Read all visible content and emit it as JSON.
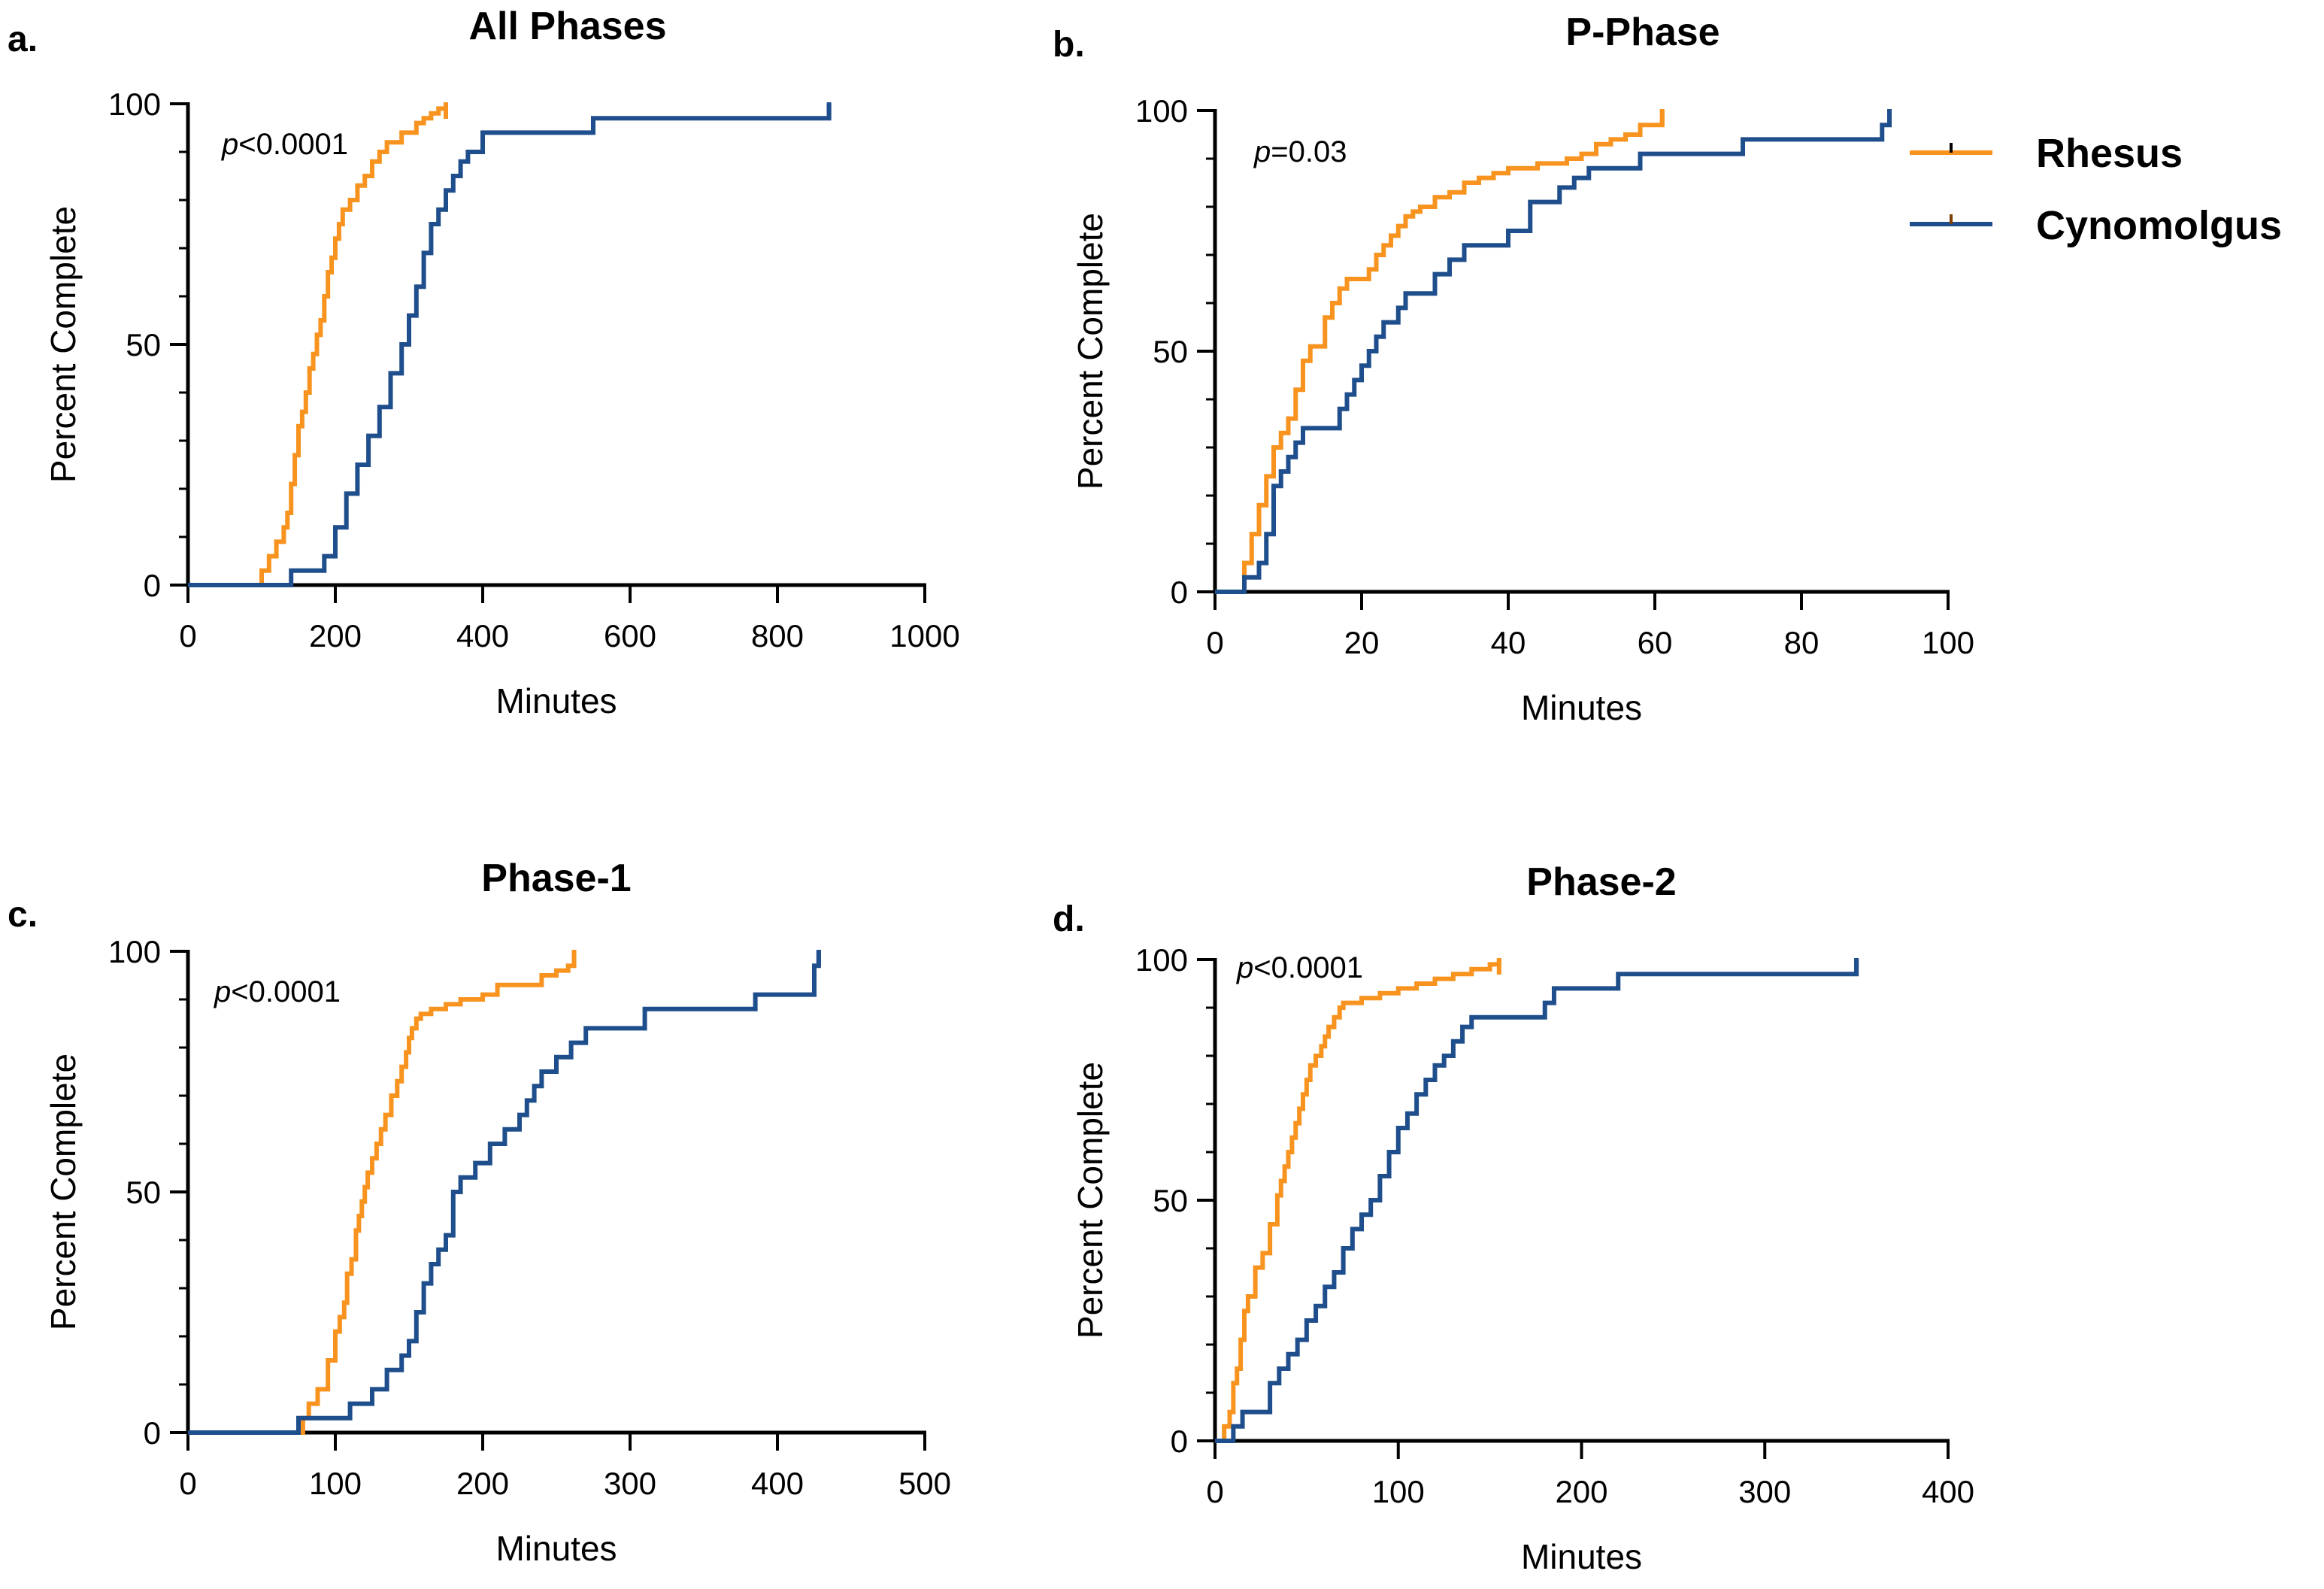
{
  "legend": {
    "items": [
      {
        "label": "Rhesus",
        "color": "#F7931E"
      },
      {
        "label": "Cynomolgus",
        "color": "#1F4E8C"
      }
    ]
  },
  "chart_data": [
    {
      "type": "line",
      "step": true,
      "panel_label": "a.",
      "title": "All Phases",
      "xlabel": "Minutes",
      "ylabel": "Percent Complete",
      "xlim": [
        0,
        1000
      ],
      "ylim": [
        0,
        100
      ],
      "xticks": [
        0,
        200,
        400,
        600,
        800,
        1000
      ],
      "yticks": [
        0,
        50,
        100
      ],
      "annotation": {
        "p_symbol": "p",
        "p_text": "<0.0001"
      },
      "series": [
        {
          "name": "Rhesus",
          "color": "#F7931E",
          "x": [
            0,
            100,
            110,
            120,
            130,
            135,
            140,
            145,
            150,
            155,
            160,
            165,
            170,
            175,
            180,
            185,
            190,
            195,
            200,
            205,
            210,
            220,
            230,
            240,
            250,
            260,
            270,
            290,
            310,
            320,
            330,
            340,
            350
          ],
          "y": [
            0,
            3,
            6,
            9,
            12,
            15,
            21,
            27,
            33,
            36,
            40,
            45,
            48,
            52,
            55,
            60,
            65,
            68,
            72,
            75,
            78,
            80,
            83,
            85,
            88,
            90,
            92,
            94,
            96,
            97,
            98,
            99,
            100
          ]
        },
        {
          "name": "Cynomolgus",
          "color": "#1F4E8C",
          "x": [
            0,
            140,
            185,
            200,
            215,
            230,
            245,
            260,
            275,
            290,
            300,
            310,
            320,
            330,
            340,
            350,
            360,
            370,
            380,
            400,
            450,
            550,
            870,
            870
          ],
          "y": [
            0,
            3,
            6,
            12,
            19,
            25,
            31,
            37,
            44,
            50,
            56,
            62,
            69,
            75,
            78,
            82,
            85,
            88,
            90,
            94,
            94,
            97,
            97,
            100
          ]
        }
      ]
    },
    {
      "type": "line",
      "step": true,
      "panel_label": "b.",
      "title": "P-Phase",
      "xlabel": "Minutes",
      "ylabel": "Percent Complete",
      "xlim": [
        0,
        100
      ],
      "ylim": [
        0,
        100
      ],
      "xticks": [
        0,
        20,
        40,
        60,
        80,
        100
      ],
      "yticks": [
        0,
        50,
        100
      ],
      "annotation": {
        "p_symbol": "p",
        "p_text": "=0.03"
      },
      "series": [
        {
          "name": "Rhesus",
          "color": "#F7931E",
          "x": [
            0,
            4,
            5,
            6,
            7,
            8,
            9,
            10,
            11,
            12,
            13,
            15,
            16,
            17,
            18,
            20,
            21,
            22,
            23,
            24,
            25,
            26,
            27,
            28,
            30,
            32,
            34,
            36,
            38,
            40,
            44,
            48,
            50,
            52,
            54,
            56,
            58,
            61
          ],
          "y": [
            0,
            6,
            12,
            18,
            24,
            30,
            33,
            36,
            42,
            48,
            51,
            57,
            60,
            63,
            65,
            65,
            67,
            70,
            72,
            74,
            76,
            78,
            79,
            80,
            82,
            83,
            85,
            86,
            87,
            88,
            89,
            90,
            91,
            93,
            94,
            95,
            97,
            100
          ]
        },
        {
          "name": "Cynomolgus",
          "color": "#1F4E8C",
          "x": [
            0,
            4,
            6,
            7,
            8,
            9,
            10,
            11,
            12,
            14,
            17,
            18,
            19,
            20,
            21,
            22,
            23,
            25,
            26,
            30,
            32,
            34,
            36,
            40,
            43,
            47,
            49,
            51,
            56,
            58,
            64,
            72,
            91,
            92
          ],
          "y": [
            0,
            3,
            6,
            12,
            22,
            25,
            28,
            31,
            34,
            34,
            38,
            41,
            44,
            47,
            50,
            53,
            56,
            59,
            62,
            66,
            69,
            72,
            72,
            75,
            81,
            84,
            86,
            88,
            88,
            91,
            91,
            94,
            97,
            100
          ]
        }
      ]
    },
    {
      "type": "line",
      "step": true,
      "panel_label": "c.",
      "title": "Phase-1",
      "xlabel": "Minutes",
      "ylabel": "Percent Complete",
      "xlim": [
        0,
        500
      ],
      "ylim": [
        0,
        100
      ],
      "xticks": [
        0,
        100,
        200,
        300,
        400,
        500
      ],
      "yticks": [
        0,
        50,
        100
      ],
      "annotation": {
        "p_symbol": "p",
        "p_text": "<0.0001"
      },
      "series": [
        {
          "name": "Rhesus",
          "color": "#F7931E",
          "x": [
            0,
            78,
            82,
            88,
            95,
            100,
            103,
            106,
            108,
            111,
            114,
            116,
            118,
            120,
            122,
            125,
            128,
            131,
            134,
            138,
            142,
            145,
            148,
            150,
            152,
            155,
            158,
            160,
            165,
            175,
            185,
            200,
            210,
            240,
            250,
            258,
            262
          ],
          "y": [
            0,
            3,
            6,
            9,
            15,
            21,
            24,
            27,
            33,
            36,
            42,
            45,
            48,
            51,
            54,
            57,
            60,
            63,
            66,
            70,
            73,
            76,
            79,
            82,
            84,
            86,
            87,
            87,
            88,
            89,
            90,
            91,
            93,
            95,
            96,
            97,
            100
          ]
        },
        {
          "name": "Cynomolgus",
          "color": "#1F4E8C",
          "x": [
            0,
            75,
            85,
            110,
            125,
            135,
            145,
            150,
            155,
            160,
            165,
            170,
            175,
            180,
            185,
            195,
            205,
            215,
            225,
            230,
            235,
            240,
            250,
            260,
            270,
            310,
            385,
            425,
            428
          ],
          "y": [
            0,
            3,
            3,
            6,
            9,
            13,
            16,
            19,
            25,
            31,
            35,
            38,
            41,
            50,
            53,
            56,
            60,
            63,
            66,
            69,
            72,
            75,
            78,
            81,
            84,
            88,
            91,
            97,
            100
          ]
        }
      ]
    },
    {
      "type": "line",
      "step": true,
      "panel_label": "d.",
      "title": "Phase-2",
      "xlabel": "Minutes",
      "ylabel": "Percent Complete",
      "xlim": [
        0,
        400
      ],
      "ylim": [
        0,
        100
      ],
      "xticks": [
        0,
        100,
        200,
        300,
        400
      ],
      "yticks": [
        0,
        50,
        100
      ],
      "annotation": {
        "p_symbol": "p",
        "p_text": "<0.0001"
      },
      "series": [
        {
          "name": "Rhesus",
          "color": "#F7931E",
          "x": [
            0,
            5,
            8,
            10,
            12,
            14,
            16,
            18,
            22,
            26,
            30,
            34,
            36,
            38,
            40,
            42,
            44,
            46,
            48,
            50,
            52,
            55,
            58,
            60,
            62,
            65,
            68,
            70,
            80,
            90,
            100,
            110,
            120,
            130,
            140,
            150,
            155
          ],
          "y": [
            0,
            3,
            6,
            12,
            15,
            21,
            27,
            30,
            36,
            39,
            45,
            51,
            54,
            57,
            60,
            63,
            66,
            69,
            72,
            75,
            78,
            80,
            82,
            84,
            86,
            88,
            90,
            91,
            92,
            93,
            94,
            95,
            96,
            97,
            98,
            99,
            100
          ]
        },
        {
          "name": "Cynomolgus",
          "color": "#1F4E8C",
          "x": [
            0,
            10,
            15,
            30,
            35,
            40,
            45,
            50,
            55,
            60,
            65,
            70,
            75,
            80,
            85,
            90,
            95,
            100,
            105,
            110,
            115,
            120,
            125,
            130,
            135,
            140,
            180,
            185,
            220,
            350
          ],
          "y": [
            0,
            3,
            6,
            12,
            15,
            18,
            21,
            25,
            28,
            32,
            35,
            40,
            44,
            47,
            50,
            55,
            60,
            65,
            68,
            72,
            75,
            78,
            80,
            83,
            86,
            88,
            91,
            94,
            97,
            100
          ]
        }
      ]
    }
  ]
}
